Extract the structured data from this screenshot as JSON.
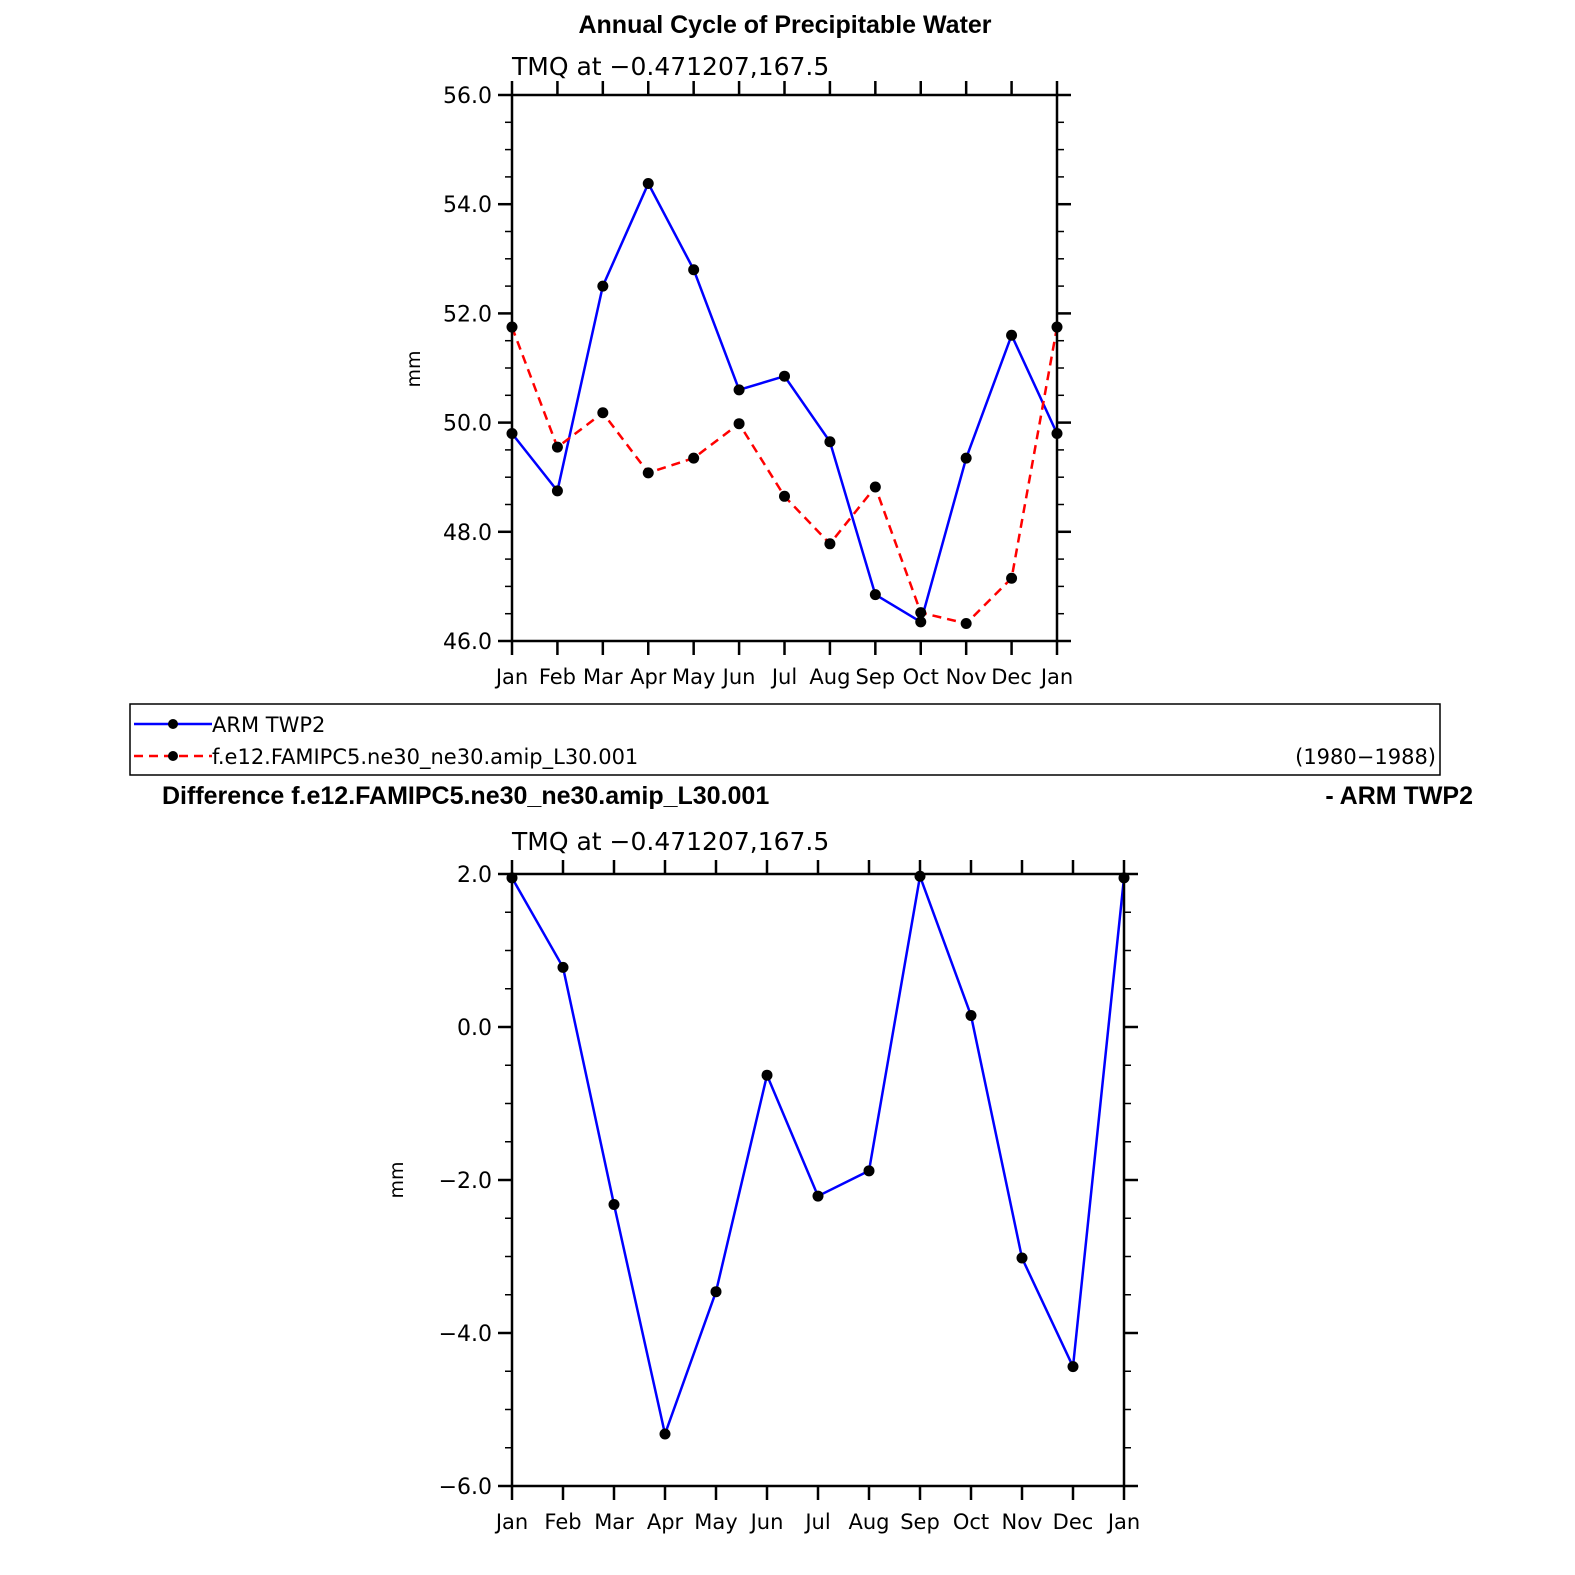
{
  "chart_data": [
    {
      "type": "line",
      "title": "Annual Cycle of Precipitable Water",
      "subtitle": "TMQ at −0.471207,167.5",
      "ylabel": "mm",
      "ylim": [
        46,
        56
      ],
      "yticks": [
        "46.0",
        "48.0",
        "50.0",
        "52.0",
        "54.0",
        "56.0"
      ],
      "categories": [
        "Jan",
        "Feb",
        "Mar",
        "Apr",
        "May",
        "Jun",
        "Jul",
        "Aug",
        "Sep",
        "Oct",
        "Nov",
        "Dec",
        "Jan"
      ],
      "series": [
        {
          "name": "ARM  TWP2",
          "color": "#0000ff",
          "dash": "solid",
          "values": [
            49.8,
            48.75,
            52.5,
            54.38,
            52.8,
            50.6,
            50.85,
            49.65,
            46.85,
            46.35,
            49.35,
            51.6,
            49.8
          ]
        },
        {
          "name": "f.e12.FAMIPC5.ne30_ne30.amip_L30.001",
          "color": "#ff0000",
          "dash": "dashed",
          "values": [
            51.75,
            49.55,
            50.18,
            49.08,
            49.35,
            49.98,
            48.65,
            47.78,
            48.82,
            46.52,
            46.32,
            47.15,
            51.75
          ]
        }
      ]
    },
    {
      "type": "line",
      "title": "Difference f.e12.FAMIPC5.ne30_ne30.amip_L30.001",
      "title_right": "- ARM TWP2",
      "subtitle": "TMQ at −0.471207,167.5",
      "ylabel": "mm",
      "ylim": [
        -6,
        2
      ],
      "yticks": [
        "−6.0",
        "−4.0",
        "−2.0",
        "0.0",
        "2.0"
      ],
      "categories": [
        "Jan",
        "Feb",
        "Mar",
        "Apr",
        "May",
        "Jun",
        "Jul",
        "Aug",
        "Sep",
        "Oct",
        "Nov",
        "Dec",
        "Jan"
      ],
      "series": [
        {
          "color": "#0000ff",
          "dash": "solid",
          "values": [
            1.95,
            0.78,
            -2.32,
            -5.32,
            -3.46,
            -0.63,
            -2.21,
            -1.88,
            1.97,
            0.15,
            -3.02,
            -4.44,
            1.95
          ]
        }
      ]
    }
  ],
  "legend": {
    "period": "(1980−1988)"
  }
}
